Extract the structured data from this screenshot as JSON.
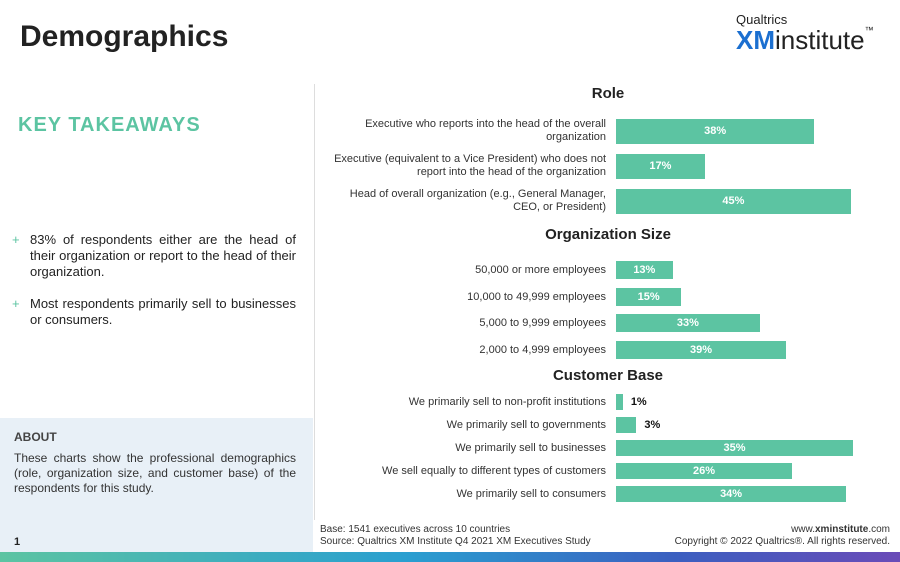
{
  "header": {
    "title": "Demographics",
    "logo_top": "Qualtrics",
    "logo_main": "XM",
    "logo_sub": "institute",
    "logo_tm": "™"
  },
  "key_takeaways": {
    "heading": "KEY TAKEAWAYS",
    "items": [
      "83% of respondents either are the head of their organization or report to the head of their organization.",
      "Most respondents primarily sell to businesses or consumers."
    ]
  },
  "about": {
    "heading": "ABOUT",
    "text": "These charts show the professional demographics (role, organization size, and customer base) of the respondents for this study."
  },
  "footer": {
    "page": "1",
    "base": "Base: 1541 executives across 10 countries",
    "source": "Source: Qualtrics XM Institute Q4 2021 XM Executives Study",
    "url_prefix": "www.",
    "url_bold": "xminstitute",
    "url_suffix": ".com",
    "copyright": "Copyright © 2022 Qualtrics®. All rights reserved."
  },
  "chart_data": [
    {
      "type": "bar",
      "title": "Role",
      "categories": [
        "Executive who reports into the head of the overall organization",
        "Executive (equivalent to a Vice President) who does not report into the head of the organization",
        "Head of overall organization (e.g., General Manager, CEO, or President)"
      ],
      "values": [
        38,
        17,
        45
      ],
      "value_labels": [
        "38%",
        "17%",
        "45%"
      ],
      "color": "#5cc4a2"
    },
    {
      "type": "bar",
      "title": "Organization Size",
      "categories": [
        "50,000 or more employees",
        "10,000 to 49,999 employees",
        "5,000 to 9,999 employees",
        "2,000 to 4,999 employees"
      ],
      "values": [
        13,
        15,
        33,
        39
      ],
      "value_labels": [
        "13%",
        "15%",
        "33%",
        "39%"
      ],
      "color": "#5cc4a2"
    },
    {
      "type": "bar",
      "title": "Customer Base",
      "categories": [
        "We primarily sell to non-profit institutions",
        "We primarily sell to governments",
        "We primarily sell to businesses",
        "We sell equally to different types of customers",
        "We primarily sell to consumers"
      ],
      "values": [
        1,
        3,
        35,
        26,
        34
      ],
      "value_labels": [
        "1%",
        "3%",
        "35%",
        "26%",
        "34%"
      ],
      "color": "#5cc4a2"
    }
  ]
}
